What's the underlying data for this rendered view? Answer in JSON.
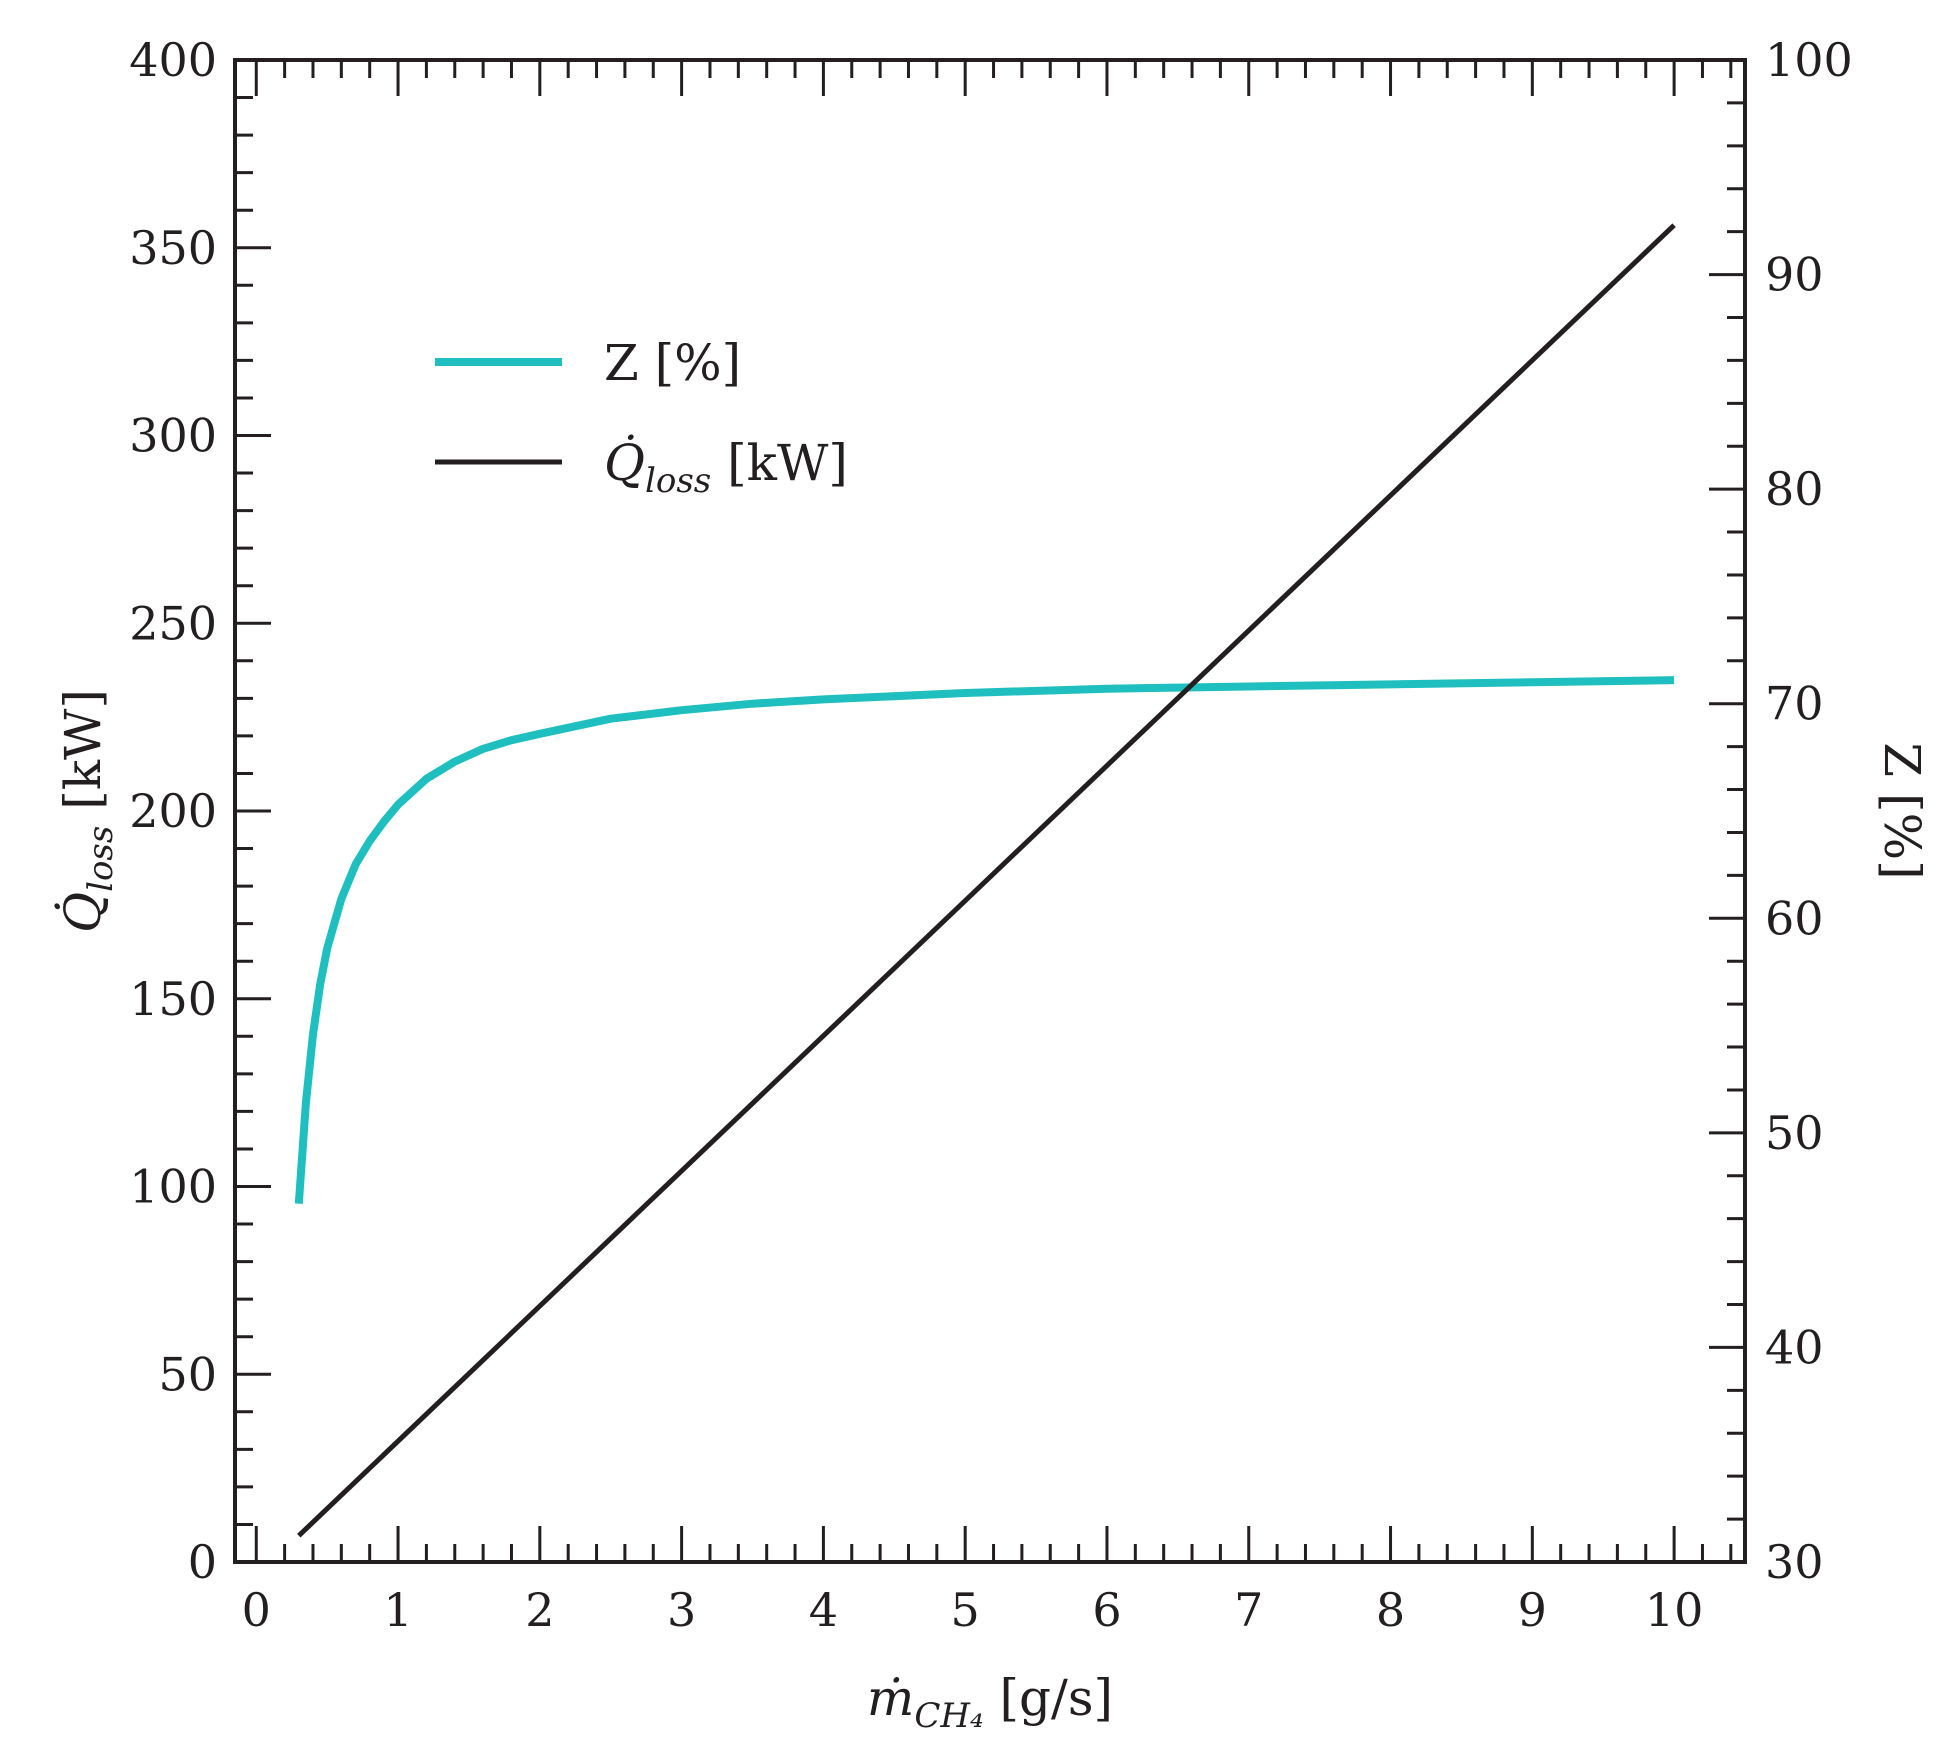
{
  "chart_data": {
    "type": "line",
    "x_axis": {
      "label_main": "ṁ",
      "label_sub": "CH₄",
      "label_unit": " [g/s]",
      "lim": [
        -0.15,
        10.5
      ],
      "ticks": [
        0,
        1,
        2,
        3,
        4,
        5,
        6,
        7,
        8,
        9,
        10
      ],
      "tick_labels": [
        "0",
        "1",
        "2",
        "3",
        "4",
        "5",
        "6",
        "7",
        "8",
        "9",
        "10"
      ],
      "minor_step": 0.2
    },
    "y_left": {
      "label_main": "Q̇",
      "label_sub": "loss",
      "label_unit": " [kW]",
      "lim": [
        0,
        400
      ],
      "ticks": [
        0,
        50,
        100,
        150,
        200,
        250,
        300,
        350,
        400
      ],
      "tick_labels": [
        "0",
        "50",
        "100",
        "150",
        "200",
        "250",
        "300",
        "350",
        "400"
      ],
      "minor_step": 10
    },
    "y_right": {
      "label": "Z [%]",
      "lim": [
        30,
        100
      ],
      "ticks": [
        30,
        40,
        50,
        60,
        70,
        80,
        90,
        100
      ],
      "tick_labels": [
        "30",
        "40",
        "50",
        "60",
        "70",
        "80",
        "90",
        "100"
      ],
      "minor_step": 2
    },
    "legend": {
      "position": "upper-left",
      "entries": [
        {
          "text": "Z [%]",
          "color": "#1fbfbf"
        },
        {
          "main": "Q̇",
          "sub": "loss",
          "unit": " [kW]",
          "color": "#231f20"
        }
      ]
    },
    "series": [
      {
        "name": "Z [%]",
        "axis": "right",
        "color": "#1fbfbf",
        "x": [
          0.3,
          0.35,
          0.4,
          0.45,
          0.5,
          0.6,
          0.7,
          0.8,
          0.9,
          1.0,
          1.2,
          1.4,
          1.6,
          1.8,
          2.0,
          2.5,
          3.0,
          3.5,
          4.0,
          5.0,
          6.0,
          6.5,
          7.0,
          8.0,
          9.0,
          10.0
        ],
        "y": [
          46.7,
          51.4,
          54.6,
          56.9,
          58.6,
          60.9,
          62.5,
          63.6,
          64.5,
          65.3,
          66.5,
          67.3,
          67.9,
          68.3,
          68.6,
          69.3,
          69.7,
          70.0,
          70.2,
          70.5,
          70.7,
          70.75,
          70.8,
          70.9,
          71.0,
          71.1
        ]
      },
      {
        "name": "Q̇loss [kW]",
        "axis": "left",
        "color": "#231f20",
        "x": [
          0.3,
          10.0
        ],
        "y": [
          7,
          356
        ]
      }
    ]
  }
}
